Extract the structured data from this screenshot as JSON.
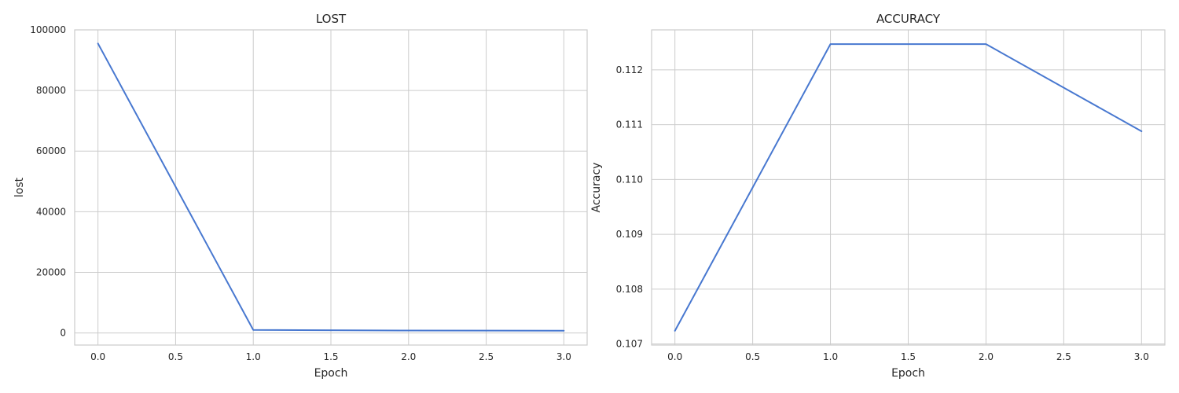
{
  "chart_data": [
    {
      "type": "line",
      "title": "LOST",
      "xlabel": "Epoch",
      "ylabel": "lost",
      "x": [
        0,
        1,
        2,
        3
      ],
      "series": [
        {
          "values": [
            95500,
            1000,
            800,
            750
          ]
        }
      ],
      "xlim": [
        -0.15,
        3.15
      ],
      "ylim": [
        -4000,
        100000
      ],
      "xticks": [
        0,
        0.5,
        1,
        1.5,
        2,
        2.5,
        3
      ],
      "xtick_labels": [
        "0.0",
        "0.5",
        "1.0",
        "1.5",
        "2.0",
        "2.5",
        "3.0"
      ],
      "yticks": [
        0,
        20000,
        40000,
        60000,
        80000,
        100000
      ],
      "ytick_labels": [
        "0",
        "20000",
        "40000",
        "60000",
        "80000",
        "100000"
      ],
      "grid": true,
      "color": "#4878d0"
    },
    {
      "type": "line",
      "title": "ACCURACY",
      "xlabel": "Epoch",
      "ylabel": "Accuracy",
      "x": [
        0,
        1,
        2,
        3
      ],
      "series": [
        {
          "values": [
            0.10724,
            0.11247,
            0.11247,
            0.11088
          ]
        }
      ],
      "xlim": [
        -0.15,
        3.15
      ],
      "ylim": [
        0.10698,
        0.11273
      ],
      "xticks": [
        0,
        0.5,
        1,
        1.5,
        2,
        2.5,
        3
      ],
      "xtick_labels": [
        "0.0",
        "0.5",
        "1.0",
        "1.5",
        "2.0",
        "2.5",
        "3.0"
      ],
      "yticks": [
        0.107,
        0.108,
        0.109,
        0.11,
        0.111,
        0.112
      ],
      "ytick_labels": [
        "0.107",
        "0.108",
        "0.109",
        "0.110",
        "0.111",
        "0.112"
      ],
      "grid": true,
      "color": "#4878d0"
    }
  ]
}
